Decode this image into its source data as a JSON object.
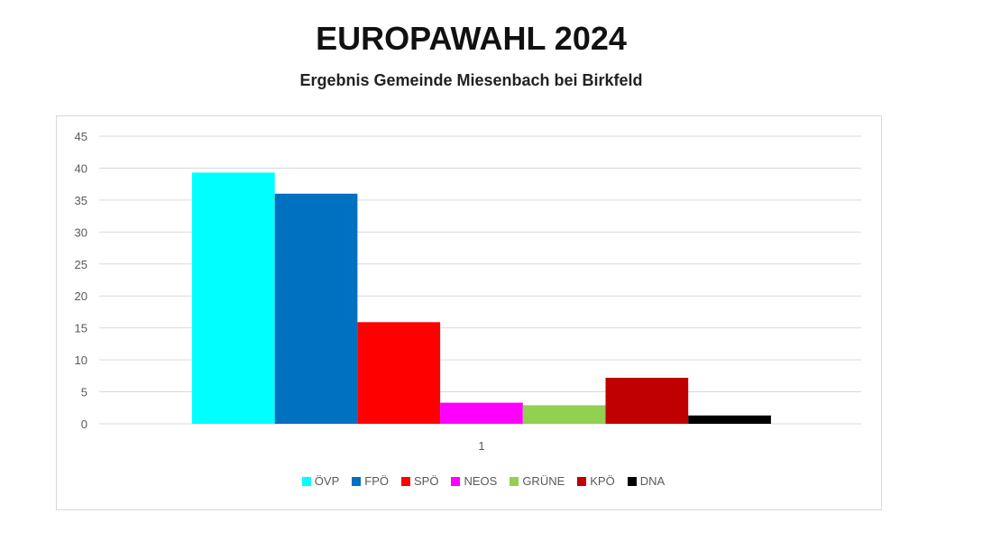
{
  "chart_data": {
    "type": "bar",
    "title": "EUROPAWAHL 2024",
    "subtitle": "Ergebnis Gemeinde Miesenbach bei Birkfeld",
    "categories": [
      "1"
    ],
    "series": [
      {
        "name": "ÖVP",
        "values": [
          39.3
        ],
        "color": "#00FFFF"
      },
      {
        "name": "FPÖ",
        "values": [
          36.0
        ],
        "color": "#0070C0"
      },
      {
        "name": "SPÖ",
        "values": [
          15.9
        ],
        "color": "#FF0000"
      },
      {
        "name": "NEOS",
        "values": [
          3.3
        ],
        "color": "#FF00FF"
      },
      {
        "name": "GRÜNE",
        "values": [
          2.9
        ],
        "color": "#92D050"
      },
      {
        "name": "KPÖ",
        "values": [
          7.2
        ],
        "color": "#C00000"
      },
      {
        "name": "DNA",
        "values": [
          1.3
        ],
        "color": "#000000"
      }
    ],
    "yticks": [
      "0",
      "5",
      "10",
      "15",
      "20",
      "25",
      "30",
      "35",
      "40",
      "45"
    ],
    "ylim": [
      0,
      45
    ],
    "xlabel": "",
    "ylabel": "",
    "grid": true,
    "legend_position": "bottom"
  }
}
